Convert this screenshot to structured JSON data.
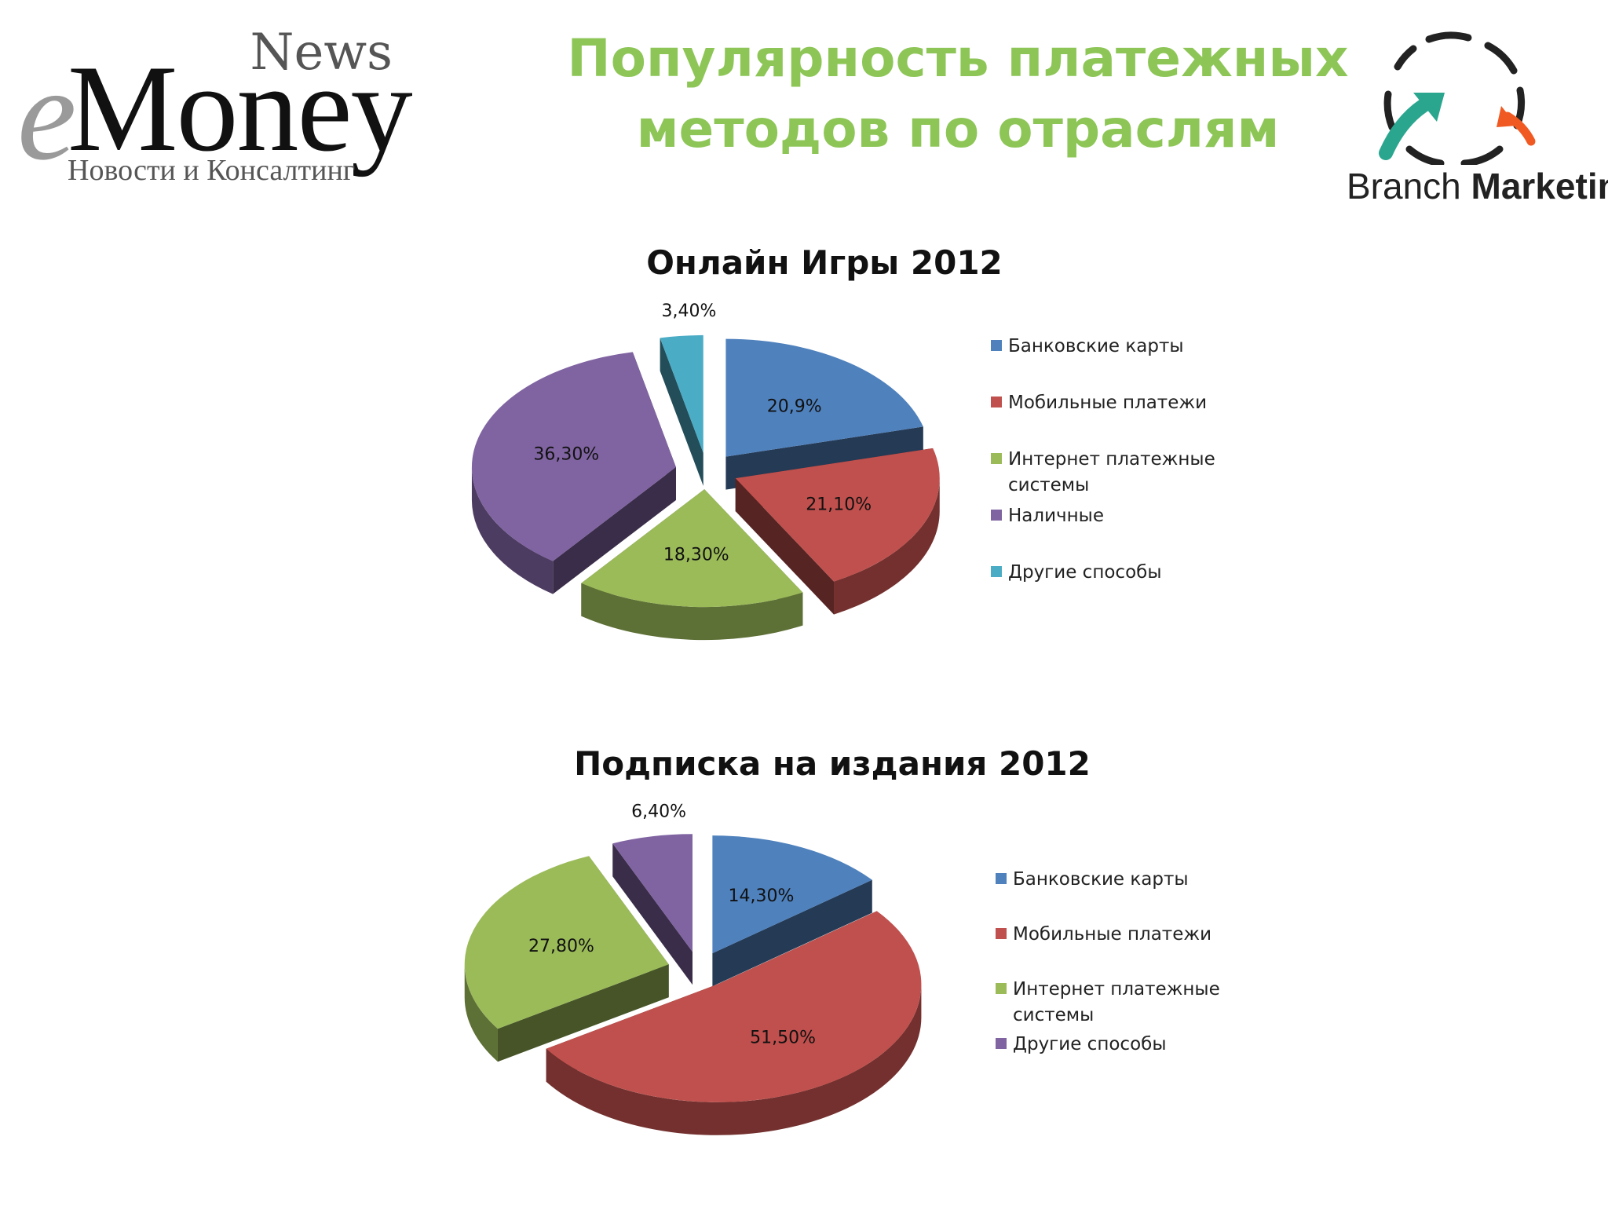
{
  "header": {
    "title_line1": "Популярность платежных",
    "title_line2": "методов по отраслям",
    "logo_left": {
      "news": "News",
      "e": "e",
      "money": "Money",
      "tagline": "Новости и Консалтинг"
    },
    "logo_right": {
      "brand1": "Branch",
      "brand2": "Marketing",
      "colors": {
        "ring": "#222222",
        "teal": "#2aa68f",
        "orange": "#f05a22"
      }
    }
  },
  "colors": {
    "title": "#8dc657",
    "blue": "#4f81bd",
    "red": "#c0504d",
    "green": "#9bbb59",
    "purple": "#8064a2",
    "cyan": "#4bacc6"
  },
  "chart_data": [
    {
      "type": "pie",
      "title": "Онлайн Игры 2012",
      "legend_position": "right",
      "categories": [
        "Банковские карты",
        "Мобильные платежи",
        "Интернет платежные системы",
        "Наличные",
        "Другие способы"
      ],
      "values": [
        20.9,
        21.1,
        18.3,
        36.3,
        3.4
      ],
      "data_labels": [
        "20,9%",
        "21,10%",
        "18,30%",
        "36,30%",
        "3,40%"
      ],
      "colors": [
        "#4f81bd",
        "#c0504d",
        "#9bbb59",
        "#8064a2",
        "#4bacc6"
      ]
    },
    {
      "type": "pie",
      "title": "Подписка на издания 2012",
      "legend_position": "right",
      "categories": [
        "Банковские карты",
        "Мобильные платежи",
        "Интернет платежные системы",
        "Другие способы"
      ],
      "values": [
        14.3,
        51.5,
        27.8,
        6.4
      ],
      "data_labels": [
        "14,30%",
        "51,50%",
        "27,80%",
        "6,40%"
      ],
      "colors": [
        "#4f81bd",
        "#c0504d",
        "#9bbb59",
        "#8064a2"
      ]
    }
  ]
}
